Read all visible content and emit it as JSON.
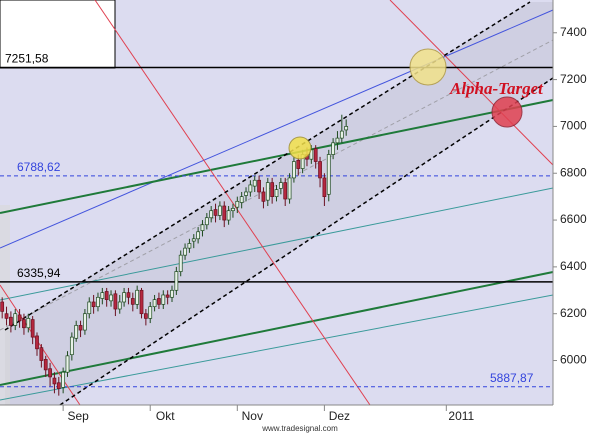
{
  "chart_data": {
    "type": "candlestick",
    "open": [
      6250,
      6200,
      6185,
      6150,
      6195,
      6175,
      6140,
      6175,
      6105,
      6055,
      6005,
      5965,
      5925,
      5905,
      5885,
      5950,
      6025,
      6095,
      6150,
      6130,
      6200,
      6250,
      6230,
      6265,
      6295,
      6255,
      6285,
      6220,
      6250,
      6290,
      6265,
      6240,
      6300,
      6200,
      6180,
      6230,
      6265,
      6240,
      6280,
      6270,
      6300,
      6380,
      6450,
      6480,
      6510,
      6520,
      6555,
      6580,
      6610,
      6645,
      6620,
      6660,
      6600,
      6640,
      6655,
      6675,
      6705,
      6720,
      6745,
      6770,
      6720,
      6685,
      6760,
      6700,
      6735,
      6760,
      6690,
      6780,
      6855,
      6820,
      6880,
      6860,
      6905,
      6850,
      6780,
      6710,
      6880,
      6930,
      6950,
      6985
    ],
    "high": [
      6270,
      6230,
      6210,
      6220,
      6220,
      6200,
      6200,
      6190,
      6120,
      6070,
      6020,
      5990,
      5950,
      5930,
      5970,
      6040,
      6120,
      6170,
      6170,
      6220,
      6270,
      6280,
      6290,
      6310,
      6310,
      6300,
      6300,
      6280,
      6310,
      6310,
      6290,
      6320,
      6310,
      6220,
      6250,
      6280,
      6290,
      6300,
      6300,
      6320,
      6400,
      6470,
      6500,
      6520,
      6540,
      6570,
      6600,
      6630,
      6660,
      6670,
      6680,
      6680,
      6660,
      6670,
      6700,
      6720,
      6740,
      6770,
      6790,
      6790,
      6740,
      6780,
      6780,
      6750,
      6780,
      6780,
      6800,
      6870,
      6880,
      6900,
      6910,
      6920,
      6920,
      6870,
      6800,
      6900,
      6950,
      6980,
      7050,
      7030
    ],
    "low": [
      6180,
      6150,
      6120,
      6130,
      6140,
      6110,
      6120,
      6070,
      6020,
      5970,
      5930,
      5890,
      5860,
      5850,
      5860,
      5930,
      6000,
      6080,
      6100,
      6110,
      6180,
      6200,
      6210,
      6240,
      6230,
      6230,
      6190,
      6200,
      6230,
      6240,
      6210,
      6220,
      6180,
      6150,
      6160,
      6210,
      6220,
      6220,
      6240,
      6250,
      6280,
      6360,
      6430,
      6460,
      6480,
      6500,
      6530,
      6560,
      6590,
      6590,
      6600,
      6570,
      6580,
      6610,
      6630,
      6650,
      6680,
      6700,
      6720,
      6690,
      6650,
      6660,
      6670,
      6680,
      6710,
      6660,
      6670,
      6760,
      6790,
      6800,
      6830,
      6840,
      6820,
      6740,
      6660,
      6680,
      6860,
      6900,
      6930,
      6960
    ],
    "close": [
      6210,
      6180,
      6150,
      6200,
      6170,
      6140,
      6180,
      6100,
      6050,
      6000,
      5960,
      5930,
      5900,
      5880,
      5950,
      6020,
      6100,
      6150,
      6130,
      6200,
      6250,
      6230,
      6270,
      6290,
      6260,
      6280,
      6220,
      6250,
      6290,
      6270,
      6240,
      6300,
      6200,
      6180,
      6230,
      6260,
      6240,
      6280,
      6270,
      6300,
      6380,
      6450,
      6480,
      6500,
      6520,
      6550,
      6580,
      6610,
      6640,
      6620,
      6660,
      6600,
      6640,
      6650,
      6680,
      6700,
      6720,
      6750,
      6770,
      6720,
      6680,
      6760,
      6700,
      6730,
      6760,
      6690,
      6780,
      6850,
      6820,
      6880,
      6860,
      6900,
      6850,
      6780,
      6700,
      6880,
      6930,
      6950,
      6980,
      7000
    ],
    "up_color": "#e8f2e8",
    "down_color": "#b5283f",
    "ylim": [
      5810,
      7540
    ],
    "yticks": [
      6000,
      6200,
      6400,
      6600,
      6800,
      7000,
      7200,
      7400
    ],
    "xlim": [
      -0.5,
      126.5
    ],
    "xticks": [
      {
        "value": 14,
        "label": "Sep"
      },
      {
        "value": 34,
        "label": "Okt"
      },
      {
        "value": 54,
        "label": "Nov"
      },
      {
        "value": 74,
        "label": "Dez"
      },
      {
        "value": 102,
        "label": "2011"
      }
    ],
    "levels": [
      {
        "value": 7251.58,
        "label": "7251,58",
        "color": "#000000",
        "style": "solid"
      },
      {
        "value": 6788.62,
        "label": "6788,62",
        "color": "#3344dd",
        "style": "dashed"
      },
      {
        "value": 6335.94,
        "label": "6335,94",
        "color": "#000000",
        "style": "solid"
      },
      {
        "value": 5887.87,
        "label": "5887,87",
        "color": "#3344dd",
        "style": "dashed"
      }
    ],
    "annotation": "Alpha-Target",
    "footer": "www.tradesignal.com"
  }
}
